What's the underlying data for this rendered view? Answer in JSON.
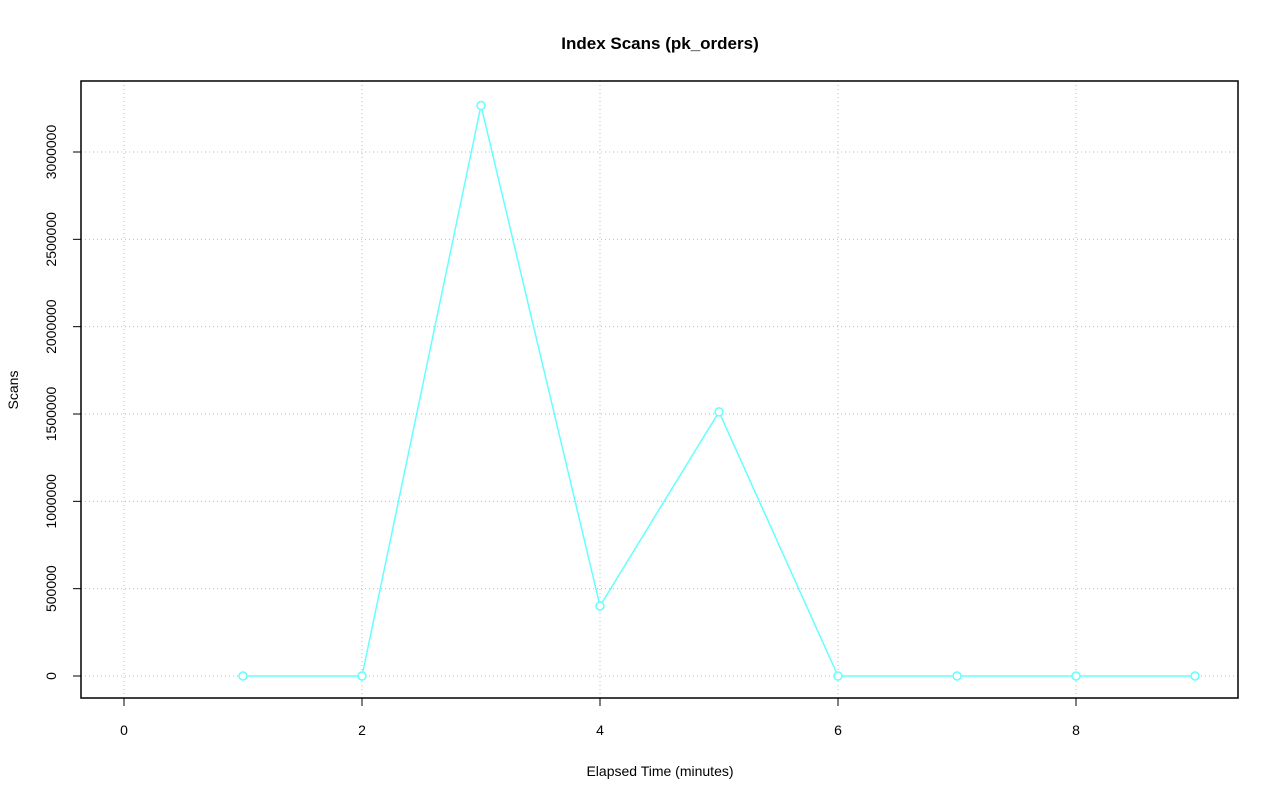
{
  "chart_data": {
    "type": "line",
    "title": "Index Scans (pk_orders)",
    "xlabel": "Elapsed Time (minutes)",
    "ylabel": "Scans",
    "x": [
      1,
      2,
      3,
      4,
      5,
      6,
      7,
      8,
      9
    ],
    "series": [
      {
        "values": [
          0,
          0,
          3266000,
          401000,
          1512000,
          0,
          0,
          0,
          0
        ],
        "color": "#66ffff"
      }
    ],
    "xlim": [
      -0.18,
      9.55
    ],
    "ylim": [
      -130000,
      3400000
    ],
    "xticks": [
      "0",
      "2",
      "4",
      "6",
      "8"
    ],
    "yticks": [
      "0",
      "500000",
      "1000000",
      "1500000",
      "2000000",
      "2500000",
      "3000000"
    ],
    "grid": true,
    "markers": "open-circle"
  }
}
